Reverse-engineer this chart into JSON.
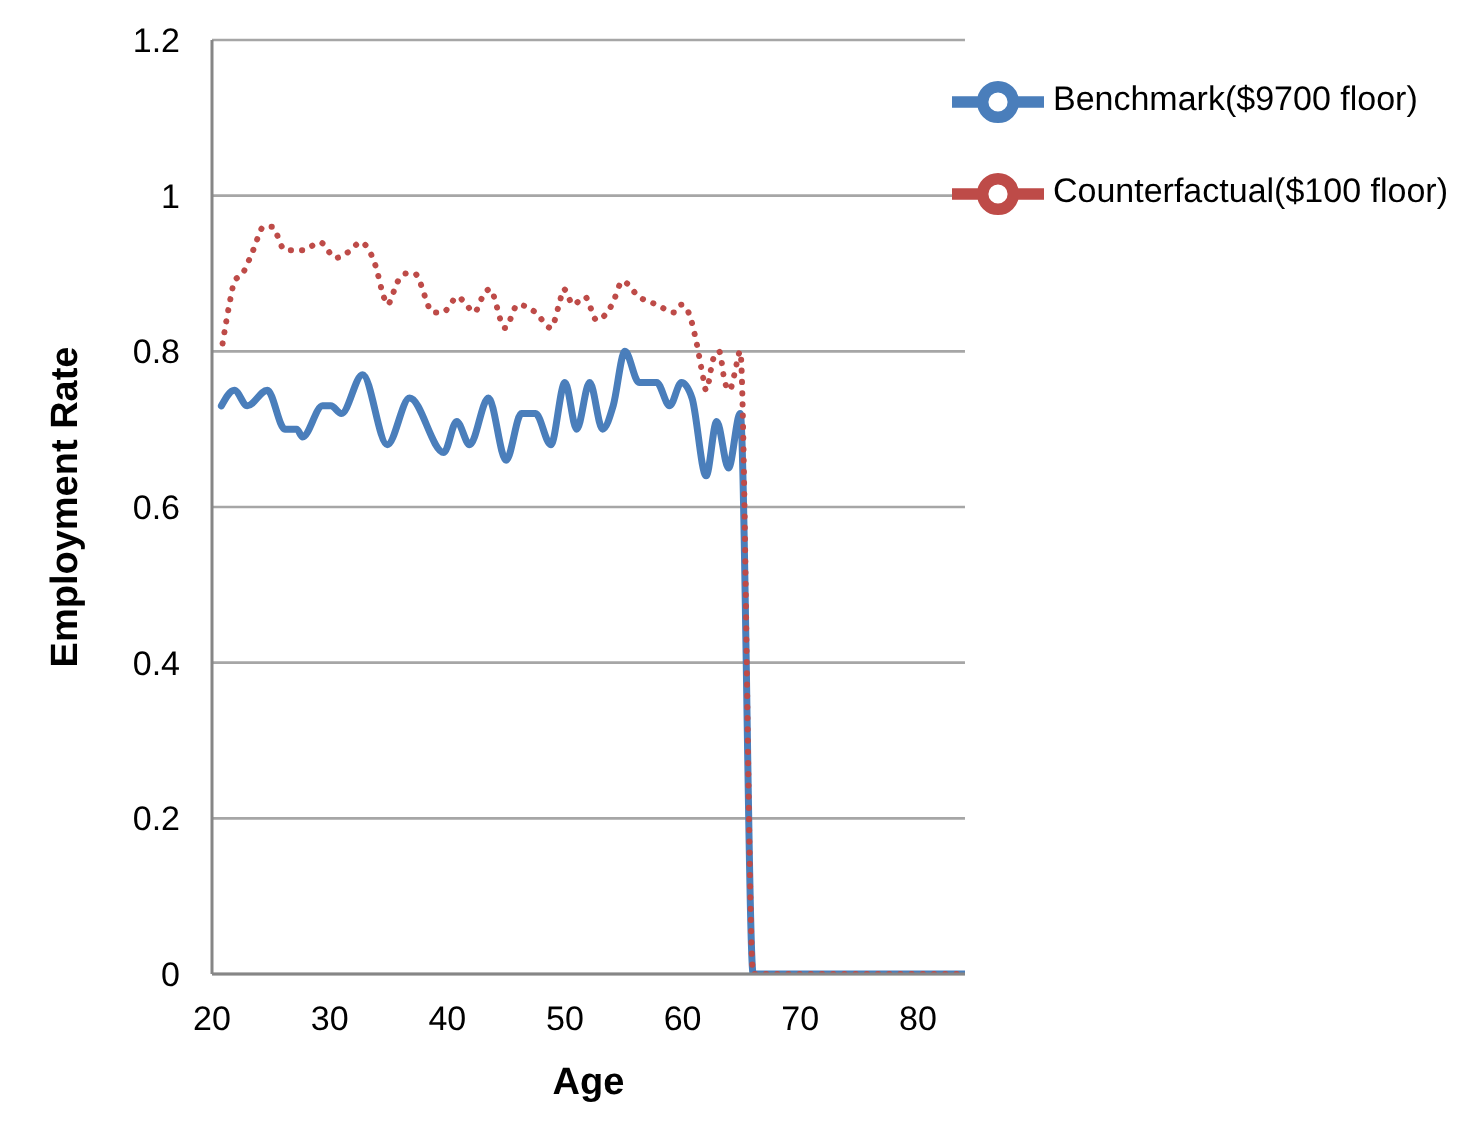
{
  "chart_data": {
    "type": "line",
    "xlabel": "Age",
    "ylabel": "Employment Rate",
    "xlim": [
      20,
      84
    ],
    "xticks": [
      20,
      30,
      40,
      50,
      60,
      70,
      80
    ],
    "ylim": [
      0,
      1.2
    ],
    "yticks": [
      0,
      0.2,
      0.4,
      0.6,
      0.8,
      1,
      1.2
    ],
    "grid": "y",
    "legend": "top right",
    "series": [
      {
        "name": "Benchmark($9700 floor)",
        "color": "#4a7ebb",
        "line_style": "solid",
        "x": [
          20.8,
          21.9,
          23,
          24.7,
          26.2,
          27.2,
          27.7,
          29.4,
          30.1,
          31,
          32.8,
          34.9,
          36.8,
          39.7,
          40.8,
          41.9,
          43.5,
          45,
          46.3,
          47.5,
          48.8,
          50,
          51,
          52.1,
          53.2,
          54.1,
          55.1,
          56.3,
          57.8,
          58.9,
          59.9,
          60.8,
          62,
          62.9,
          63.9,
          64.9,
          66,
          84
        ],
        "values": [
          0.73,
          0.75,
          0.73,
          0.75,
          0.7,
          0.7,
          0.69,
          0.73,
          0.73,
          0.72,
          0.77,
          0.68,
          0.74,
          0.67,
          0.71,
          0.68,
          0.74,
          0.66,
          0.72,
          0.72,
          0.68,
          0.76,
          0.7,
          0.76,
          0.7,
          0.73,
          0.8,
          0.76,
          0.76,
          0.73,
          0.76,
          0.74,
          0.64,
          0.71,
          0.65,
          0.72,
          0,
          0
        ]
      },
      {
        "name": "Counterfactual($100 floor)",
        "color": "#be4b48",
        "line_style": "dotted",
        "x": [
          20.9,
          21.6,
          21.9,
          22.6,
          23.5,
          24.4,
          25.1,
          26.2,
          27,
          27.7,
          29.2,
          30.5,
          31.8,
          32.6,
          33.9,
          34.6,
          34.9,
          35.8,
          36.5,
          37.2,
          38.8,
          39.6,
          40.9,
          41.6,
          42.3,
          43,
          43.6,
          44.9,
          46,
          47.5,
          48.8,
          49.5,
          49.9,
          50.7,
          51.7,
          52.7,
          54,
          54.9,
          56.3,
          57.8,
          59.3,
          59.9,
          60.5,
          61.2,
          61.7,
          62,
          62.6,
          63.1,
          63.6,
          64,
          64.4,
          64.9,
          66,
          84
        ],
        "values": [
          0.81,
          0.87,
          0.89,
          0.9,
          0.93,
          0.96,
          0.96,
          0.93,
          0.93,
          0.93,
          0.94,
          0.92,
          0.93,
          0.94,
          0.91,
          0.87,
          0.86,
          0.89,
          0.9,
          0.9,
          0.85,
          0.85,
          0.87,
          0.86,
          0.85,
          0.87,
          0.88,
          0.83,
          0.86,
          0.85,
          0.83,
          0.86,
          0.88,
          0.86,
          0.87,
          0.84,
          0.86,
          0.89,
          0.87,
          0.86,
          0.85,
          0.86,
          0.85,
          0.81,
          0.77,
          0.75,
          0.79,
          0.8,
          0.76,
          0.75,
          0.77,
          0.8,
          0,
          0
        ]
      }
    ]
  }
}
